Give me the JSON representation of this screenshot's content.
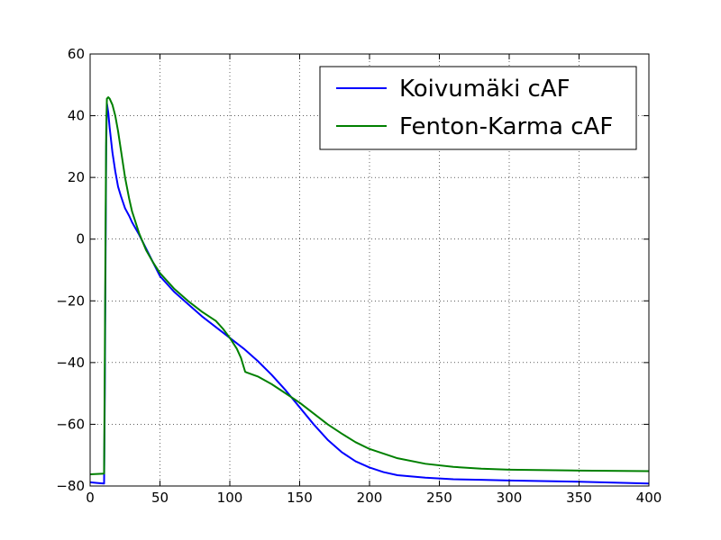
{
  "chart_data": {
    "type": "line",
    "title": "",
    "xlabel": "",
    "ylabel": "",
    "xlim": [
      0,
      400
    ],
    "ylim": [
      -80,
      60
    ],
    "xticks": [
      0,
      50,
      100,
      150,
      200,
      250,
      300,
      350,
      400
    ],
    "yticks": [
      60,
      40,
      20,
      0,
      -20,
      -40,
      -60,
      -80
    ],
    "xtick_labels": [
      "0",
      "50",
      "100",
      "150",
      "200",
      "250",
      "300",
      "350",
      "400"
    ],
    "ytick_labels": [
      "60",
      "40",
      "20",
      "0",
      "−20",
      "−40",
      "−60",
      "−80"
    ],
    "grid": true,
    "grid_style": "dotted",
    "legend_position": "top-right",
    "series": [
      {
        "name": "Koivumäki cAF",
        "color": "#0000ff",
        "x": [
          0,
          5,
          10,
          10.5,
          11,
          11.5,
          12,
          13,
          14,
          16,
          18,
          20,
          22,
          25,
          28,
          30,
          35,
          40,
          45,
          50,
          60,
          70,
          80,
          90,
          100,
          110,
          120,
          130,
          140,
          150,
          160,
          170,
          180,
          190,
          200,
          210,
          220,
          240,
          260,
          280,
          300,
          350,
          400
        ],
        "y": [
          -78.8,
          -79,
          -79.2,
          -50,
          -10,
          30,
          44,
          41,
          36,
          28,
          22,
          17,
          14,
          10,
          7.5,
          5.5,
          1.5,
          -3,
          -7.5,
          -12,
          -17,
          -21,
          -25,
          -28.5,
          -32,
          -35.5,
          -39.5,
          -44,
          -49,
          -54.5,
          -60,
          -65,
          -69,
          -72,
          -74,
          -75.5,
          -76.5,
          -77.3,
          -77.8,
          -78,
          -78.2,
          -78.6,
          -79.2
        ]
      },
      {
        "name": "Fenton-Karma cAF",
        "color": "#008000",
        "x": [
          0,
          5,
          10,
          10.5,
          11,
          11.5,
          12,
          13,
          14,
          16,
          18,
          20,
          22,
          25,
          28,
          30,
          35,
          40,
          45,
          50,
          60,
          70,
          80,
          90,
          95,
          100,
          105,
          108,
          110,
          111,
          112,
          120,
          130,
          140,
          150,
          160,
          170,
          180,
          190,
          200,
          220,
          240,
          260,
          280,
          300,
          350,
          400
        ],
        "y": [
          -76.2,
          -76.1,
          -76,
          -40,
          0,
          35,
          45.5,
          46,
          45.5,
          43.5,
          40,
          35,
          29,
          20,
          13,
          9,
          2,
          -3.5,
          -7.5,
          -11,
          -16,
          -20,
          -23.5,
          -26.5,
          -29,
          -32,
          -35.5,
          -38.5,
          -41.5,
          -43,
          -43.2,
          -44.5,
          -47,
          -50,
          -53,
          -56.5,
          -60,
          -63,
          -65.8,
          -68,
          -71,
          -72.8,
          -73.8,
          -74.4,
          -74.7,
          -75,
          -75.2
        ]
      }
    ]
  }
}
